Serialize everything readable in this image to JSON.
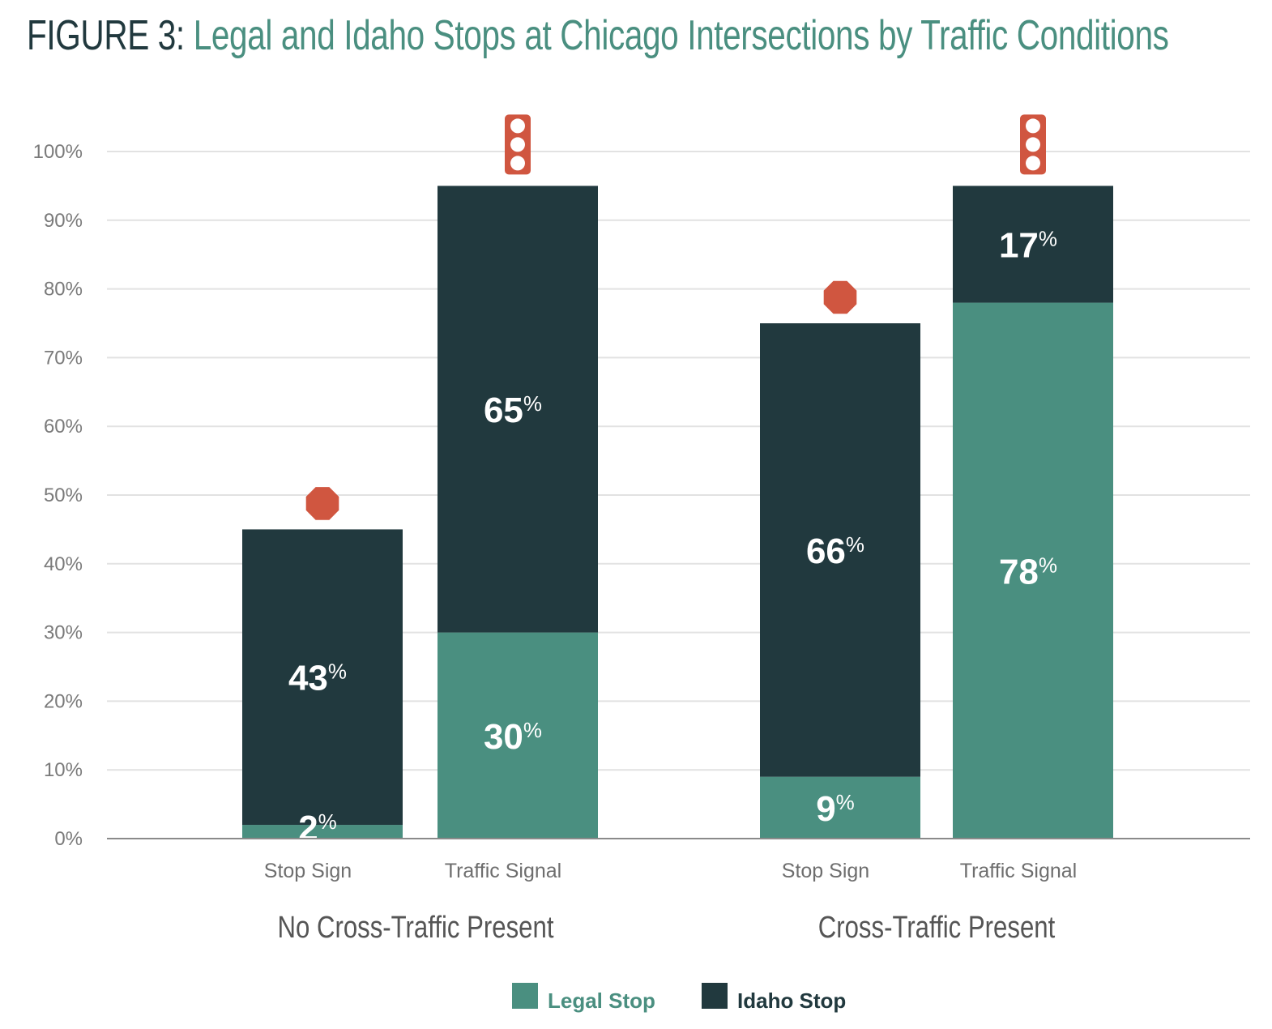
{
  "title": {
    "prefix": "FIGURE 3:",
    "main": "Legal and Idaho Stops at Chicago Intersections by Traffic Conditions"
  },
  "colors": {
    "legal": "#4a8f80",
    "idaho": "#21393e",
    "icon": "#d05640",
    "grid": "#e2e2e2",
    "axis": "#8a8a8a",
    "title_prefix": "#21393e",
    "title_main": "#4a8f80"
  },
  "chart_data": {
    "type": "bar",
    "stacked": true,
    "title": "FIGURE 3: Legal and Idaho Stops at Chicago Intersections by Traffic Conditions",
    "xlabel": "",
    "ylabel": "",
    "ylim": [
      0,
      100
    ],
    "yticks": [
      0,
      10,
      20,
      30,
      40,
      50,
      60,
      70,
      80,
      90,
      100
    ],
    "ytick_labels": [
      "0%",
      "10%",
      "20%",
      "30%",
      "40%",
      "50%",
      "60%",
      "70%",
      "80%",
      "90%",
      "100%"
    ],
    "grid": true,
    "groups": [
      {
        "label": "No Cross-Traffic Present",
        "categories": [
          "Stop Sign",
          "Traffic Signal"
        ]
      },
      {
        "label": "Cross-Traffic Present",
        "categories": [
          "Stop Sign",
          "Traffic Signal"
        ]
      }
    ],
    "categories": [
      "Stop Sign",
      "Traffic Signal",
      "Stop Sign",
      "Traffic Signal"
    ],
    "category_icons": [
      "stop-sign-icon",
      "traffic-light-icon",
      "stop-sign-icon",
      "traffic-light-icon"
    ],
    "series": [
      {
        "name": "Legal Stop",
        "color": "#4a8f80",
        "values": [
          2,
          30,
          9,
          78
        ],
        "labels": [
          "2",
          "30",
          "9",
          "78"
        ]
      },
      {
        "name": "Idaho Stop",
        "color": "#21393e",
        "values": [
          43,
          65,
          66,
          17
        ],
        "labels": [
          "43",
          "65",
          "66",
          "17"
        ]
      }
    ],
    "label_suffix": "%",
    "legend": {
      "position": "bottom-center",
      "entries": [
        "Legal Stop",
        "Idaho Stop"
      ]
    }
  }
}
